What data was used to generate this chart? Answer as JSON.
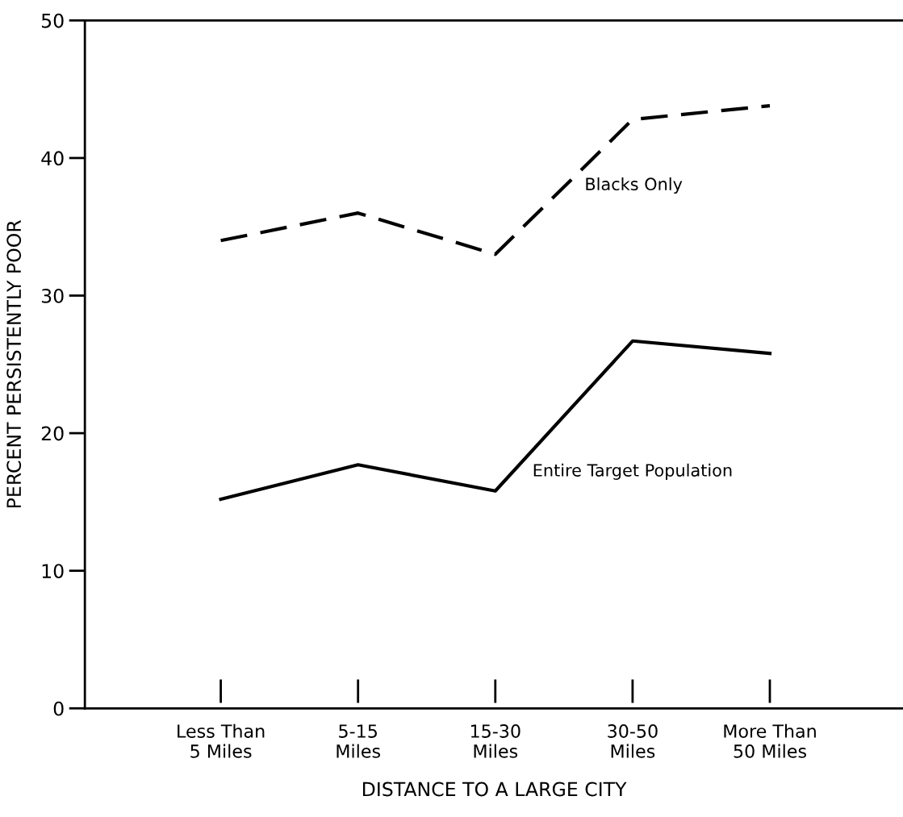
{
  "chart_data": {
    "type": "line",
    "xlabel": "DISTANCE TO A LARGE CITY",
    "ylabel": "PERCENT PERSISTENTLY POOR",
    "categories": [
      "Less Than\n5 Miles",
      "5-15\nMiles",
      "15-30\nMiles",
      "30-50\nMiles",
      "More Than\n50 Miles"
    ],
    "series": [
      {
        "name": "Blacks Only",
        "color": "#000000",
        "line_style": "dashed",
        "values": [
          34,
          36,
          33,
          42.8,
          43.8
        ]
      },
      {
        "name": "Entire Target Population",
        "color": "#000000",
        "line_style": "solid",
        "values": [
          15.2,
          17.7,
          15.8,
          26.7,
          25.8
        ]
      }
    ],
    "ylim": [
      0,
      50
    ],
    "yticks": [
      0,
      10,
      20,
      30,
      40,
      50
    ],
    "grid": false,
    "legend": false,
    "marker": "none"
  }
}
